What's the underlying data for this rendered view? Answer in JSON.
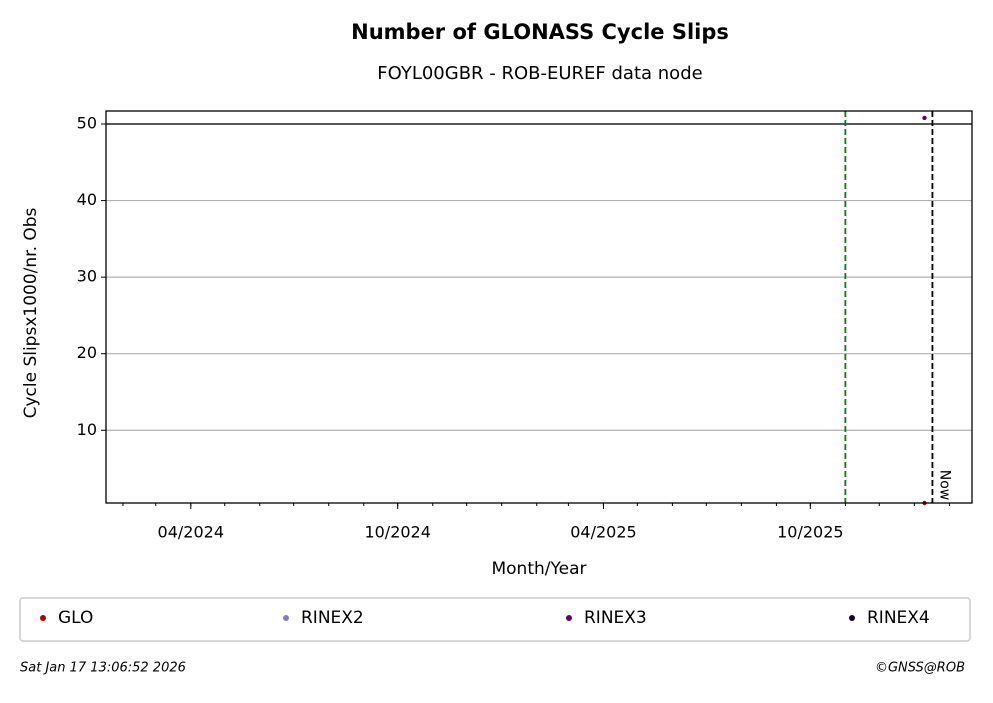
{
  "chart_data": {
    "type": "scatter",
    "title": "Number of GLONASS Cycle Slips",
    "subtitle": "FOYL00GBR - ROB-EUREF data node",
    "x_label": "Month/Year",
    "y_label": "Cycle Slipsx1000/nr. Obs",
    "xlim": [
      "2024-01-17",
      "2026-02-21"
    ],
    "xticks": [
      {
        "value": "2024-04-01",
        "label": "04/2024"
      },
      {
        "value": "2024-10-01",
        "label": "10/2024"
      },
      {
        "value": "2025-04-01",
        "label": "04/2025"
      },
      {
        "value": "2025-10-01",
        "label": "10/2025"
      }
    ],
    "ylim": [
      0.5,
      51.7
    ],
    "yticks": [
      10,
      20,
      30,
      40,
      50
    ],
    "grid": true,
    "threshold_line": 50,
    "vlines": [
      {
        "x": "2025-11-01",
        "color": "#008000"
      },
      {
        "x": "2026-01-17",
        "color": "#000000",
        "label": "Now"
      }
    ],
    "series": [
      {
        "name": "GLO",
        "color": "#b00000",
        "x": [
          "2026-01-10"
        ],
        "values": [
          0.5
        ]
      },
      {
        "name": "RINEX2",
        "color": "#8080c0",
        "x": [],
        "values": []
      },
      {
        "name": "RINEX3",
        "color": "#660066",
        "x": [
          "2026-01-10"
        ],
        "values": [
          50.8
        ]
      },
      {
        "name": "RINEX4",
        "color": "#1a0020",
        "x": [],
        "values": []
      }
    ],
    "legend": "bottom",
    "footer_left": "Sat Jan 17 13:06:52 2026",
    "footer_right": "©GNSS@ROB"
  }
}
